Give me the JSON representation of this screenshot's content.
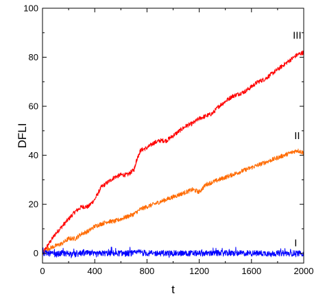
{
  "chart_data": {
    "type": "line",
    "xlabel": "t",
    "ylabel": "DFLI",
    "xlim": [
      0,
      2000
    ],
    "ylim": [
      -4,
      100
    ],
    "x_ticks": [
      "0",
      "400",
      "800",
      "1200",
      "1600",
      "2000"
    ],
    "y_ticks": [
      "0",
      "20",
      "40",
      "60",
      "80",
      "100"
    ],
    "grid": false,
    "series": [
      {
        "name": "III",
        "color": "#ff0000",
        "x": [
          0,
          50,
          100,
          150,
          200,
          250,
          300,
          350,
          400,
          450,
          500,
          550,
          600,
          650,
          700,
          720,
          750,
          800,
          850,
          900,
          950,
          1000,
          1050,
          1100,
          1150,
          1200,
          1250,
          1300,
          1350,
          1400,
          1450,
          1500,
          1550,
          1600,
          1650,
          1700,
          1750,
          1800,
          1850,
          1900,
          1950,
          2000
        ],
        "values": [
          0,
          4,
          8,
          11,
          14,
          17,
          19,
          19,
          22,
          27,
          29,
          31,
          32,
          32,
          34,
          38,
          42,
          43,
          45,
          46,
          46,
          48,
          50,
          52,
          53,
          55,
          56,
          57,
          60,
          62,
          64,
          65,
          66,
          68,
          70,
          71,
          73,
          75,
          77,
          79,
          81,
          82
        ]
      },
      {
        "name": "II",
        "color": "#ff6a00",
        "x": [
          0,
          50,
          100,
          150,
          200,
          250,
          300,
          350,
          400,
          450,
          500,
          550,
          600,
          650,
          700,
          750,
          800,
          850,
          900,
          950,
          1000,
          1050,
          1100,
          1150,
          1200,
          1250,
          1300,
          1350,
          1400,
          1450,
          1500,
          1550,
          1600,
          1650,
          1700,
          1750,
          1800,
          1850,
          1900,
          1950,
          2000
        ],
        "values": [
          0,
          2,
          3,
          4,
          6,
          6,
          8,
          9,
          11,
          12,
          13,
          13,
          14,
          15,
          16,
          18,
          19,
          20,
          21,
          22,
          23,
          24,
          25,
          26,
          25,
          28,
          29,
          30,
          31,
          32,
          33,
          34,
          35,
          36,
          37,
          38,
          39,
          40,
          41,
          42,
          41
        ]
      },
      {
        "name": "I",
        "color": "#0000ff",
        "x": [
          0,
          50,
          100,
          150,
          200,
          250,
          300,
          350,
          400,
          450,
          500,
          550,
          600,
          650,
          700,
          750,
          800,
          850,
          900,
          950,
          1000,
          1050,
          1100,
          1150,
          1200,
          1250,
          1300,
          1350,
          1400,
          1450,
          1500,
          1550,
          1600,
          1650,
          1700,
          1750,
          1800,
          1850,
          1900,
          1950,
          2000
        ],
        "values": [
          0,
          0,
          -0.5,
          0,
          0,
          -0.5,
          0,
          0,
          -0.5,
          0,
          0,
          0,
          0,
          0,
          0,
          0.5,
          0,
          0,
          0,
          0,
          0,
          0,
          0,
          0,
          0,
          0,
          0,
          0,
          0,
          0,
          0,
          0,
          0,
          0,
          0,
          0,
          0,
          0,
          0,
          0,
          0
        ],
        "noise_amplitude": 1.2
      }
    ]
  }
}
